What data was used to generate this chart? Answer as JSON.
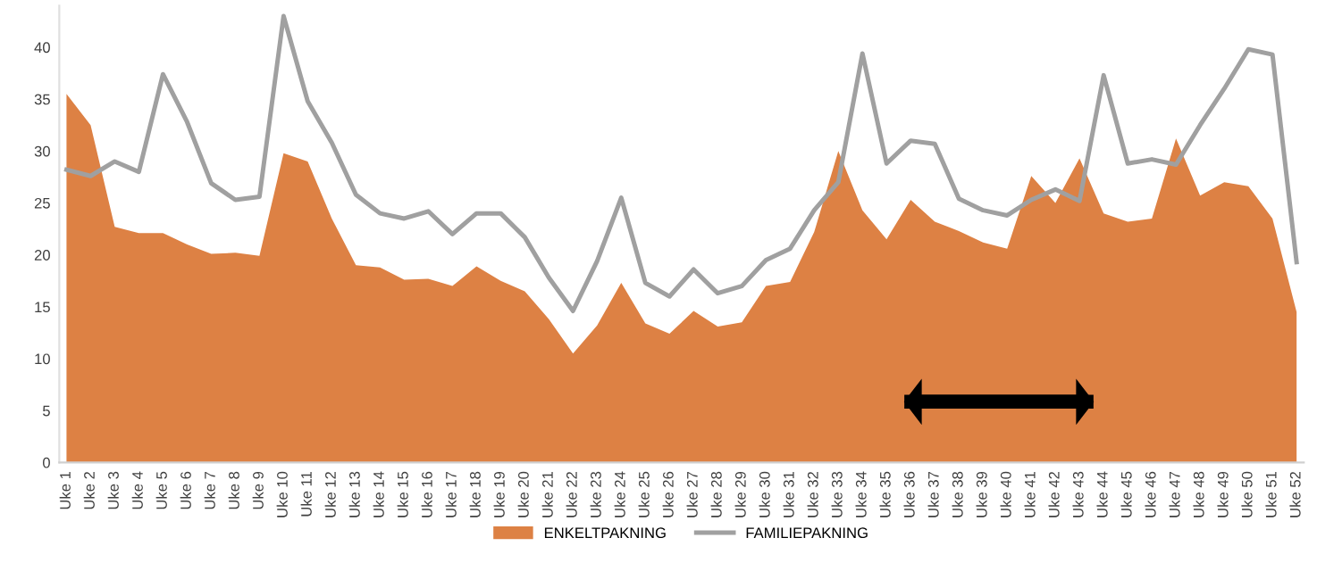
{
  "chart_data": {
    "type": "area",
    "categories": [
      "Uke 1",
      "Uke 2",
      "Uke 3",
      "Uke 4",
      "Uke 5",
      "Uke 6",
      "Uke 7",
      "Uke 8",
      "Uke 9",
      "Uke 10",
      "Uke 11",
      "Uke 12",
      "Uke 13",
      "Uke 14",
      "Uke 15",
      "Uke 16",
      "Uke 17",
      "Uke 18",
      "Uke 19",
      "Uke 20",
      "Uke 21",
      "Uke 22",
      "Uke 23",
      "Uke 24",
      "Uke 25",
      "Uke 26",
      "Uke 27",
      "Uke 28",
      "Uke 29",
      "Uke 30",
      "Uke 31",
      "Uke 32",
      "Uke 33",
      "Uke 34",
      "Uke 35",
      "Uke 36",
      "Uke 37",
      "Uke 38",
      "Uke 39",
      "Uke 40",
      "Uke 41",
      "Uke 42",
      "Uke 43",
      "Uke 44",
      "Uke 45",
      "Uke 46",
      "Uke 47",
      "Uke 48",
      "Uke 49",
      "Uke 50",
      "Uke 51",
      "Uke 52"
    ],
    "series": [
      {
        "name": "ENKELTPAKNING",
        "color": "#dd8144",
        "values": [
          35.5,
          32.5,
          22.7,
          22.1,
          22.1,
          21,
          20.1,
          20.2,
          19.9,
          29.8,
          29,
          23.5,
          19,
          18.8,
          17.6,
          17.7,
          17,
          18.9,
          17.5,
          16.5,
          13.8,
          10.5,
          13.2,
          17.3,
          13.4,
          12.4,
          14.6,
          13.1,
          13.5,
          17,
          17.4,
          22.2,
          30,
          24.3,
          21.5,
          25.3,
          23.2,
          22.3,
          21.2,
          20.6,
          27.6,
          25,
          29.3,
          24,
          23.2,
          23.5,
          31.2,
          25.7,
          27,
          26.6,
          23.5,
          14.5
        ]
      },
      {
        "name": "FAMILIEPAKNING",
        "type": "line",
        "color": "#a0a0a0",
        "values": [
          28.2,
          27.6,
          29,
          28,
          37.4,
          32.8,
          26.9,
          25.3,
          25.6,
          43,
          34.8,
          30.8,
          25.8,
          24,
          23.5,
          24.2,
          22,
          24,
          24,
          21.7,
          17.8,
          14.6,
          19.4,
          25.5,
          17.3,
          16,
          18.6,
          16.3,
          17,
          19.5,
          20.6,
          24.3,
          27,
          39.4,
          28.8,
          31,
          30.7,
          25.4,
          24.3,
          23.8,
          25.3,
          26.3,
          25.2,
          37.3,
          28.8,
          29.2,
          28.7,
          32.5,
          36,
          39.8,
          39.3,
          19.3
        ]
      }
    ],
    "ylim": [
      0,
      44
    ],
    "yticks": [
      0,
      5,
      10,
      15,
      20,
      25,
      30,
      35,
      40
    ],
    "grid": false,
    "legend": "bottom",
    "marker": "none",
    "line_style": "solid"
  }
}
